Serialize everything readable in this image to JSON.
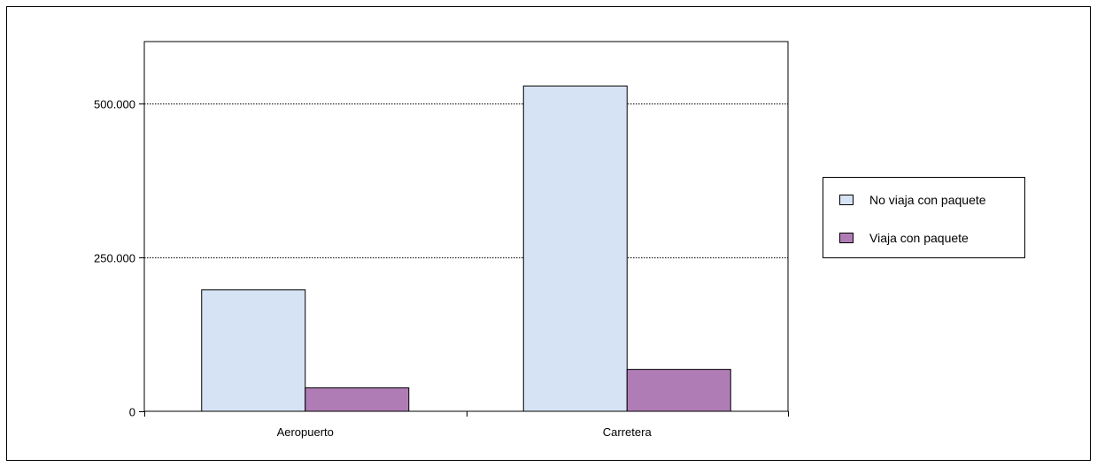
{
  "chart_data": {
    "type": "bar",
    "title": "",
    "xlabel": "",
    "ylabel": "",
    "categories": [
      "Aeropuerto",
      "Carretera"
    ],
    "series": [
      {
        "name": "No viaja con paquete",
        "values": [
          197000,
          528000
        ],
        "color": "#d6e3f4"
      },
      {
        "name": "Viaja con paquete",
        "values": [
          38000,
          68000
        ],
        "color": "#b07cb6"
      }
    ],
    "ylim": [
      0,
      600000
    ],
    "yticks": [
      0,
      250000,
      500000
    ],
    "ytick_labels": [
      "0",
      "250.000",
      "500.000"
    ],
    "grid": "horizontal dotted",
    "legend_position": "right"
  }
}
